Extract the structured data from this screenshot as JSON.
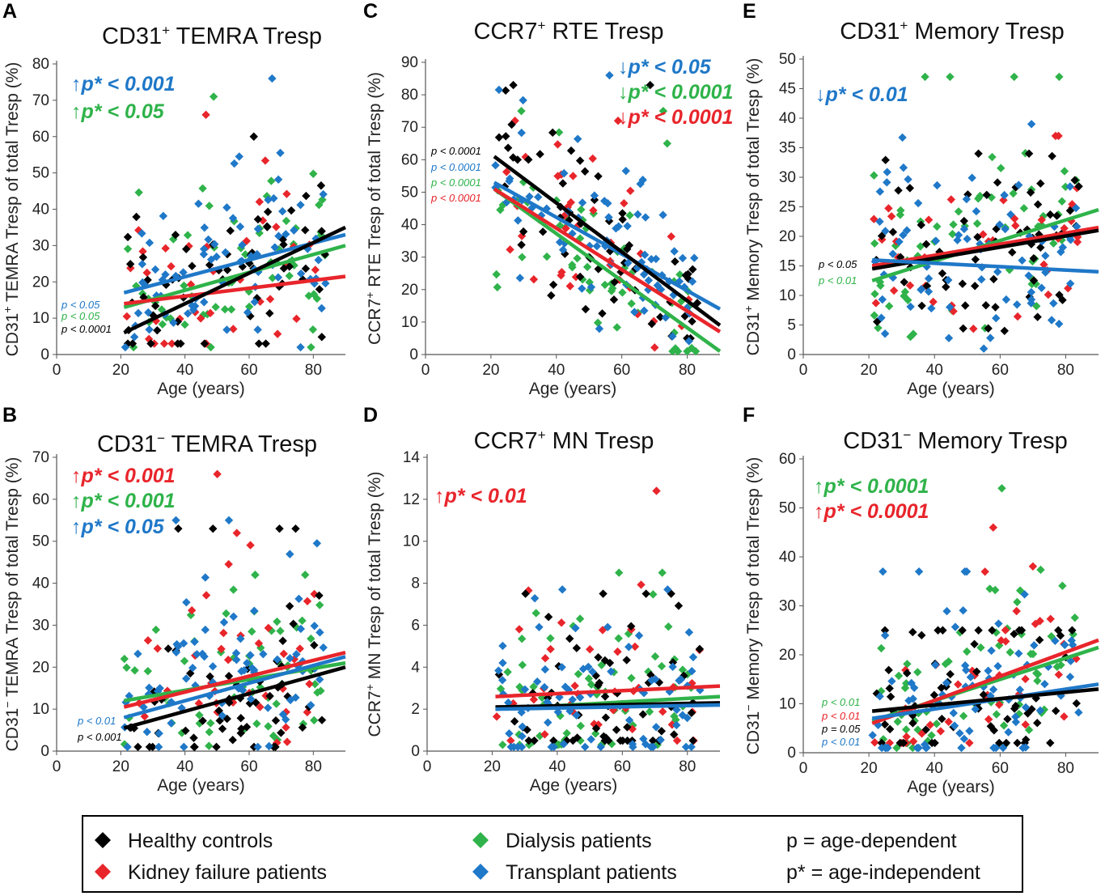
{
  "colors": {
    "healthy": "#000000",
    "kidney": "#e8252b",
    "dialysis": "#2fb34a",
    "transplant": "#1f78c8"
  },
  "legend": {
    "healthy": "Healthy controls",
    "kidney": "Kidney failure patients",
    "dialysis": "Dialysis patients",
    "transplant": "Transplant patients",
    "p_def": "p = age-dependent",
    "pstar_def": "p* = age-independent"
  },
  "chart_data": [
    {
      "id": "A",
      "type": "scatter",
      "letter": "A",
      "title_main": "CD31",
      "title_sup": "+",
      "title_rest": " TEMRA Tresp",
      "ylabel_main": "CD31",
      "ylabel_sup": "+",
      "ylabel_rest": " TEMRA Tresp of total Tresp (%)",
      "xlabel": "Age (years)",
      "xlim": [
        0,
        90
      ],
      "ylim": [
        0,
        80
      ],
      "xticks": [
        0,
        20,
        40,
        60,
        80
      ],
      "yticks": [
        0,
        10,
        20,
        30,
        40,
        50,
        60,
        70,
        80
      ],
      "series_ranges": {
        "healthy": [
          3,
          60
        ],
        "kidney": [
          3,
          66
        ],
        "dialysis": [
          2,
          71
        ],
        "transplant": [
          2,
          76
        ]
      },
      "trendlines": [
        {
          "group": "dialysis",
          "x0": 21,
          "y0": 13,
          "x1": 90,
          "y1": 30
        },
        {
          "group": "kidney",
          "x0": 21,
          "y0": 14,
          "x1": 90,
          "y1": 21.5
        },
        {
          "group": "transplant",
          "x0": 21,
          "y0": 17,
          "x1": 90,
          "y1": 33
        },
        {
          "group": "healthy",
          "x0": 21,
          "y0": 6,
          "x1": 90,
          "y1": 35
        }
      ],
      "pstar": [
        {
          "arrow": "↑",
          "text": "p* < 0.001",
          "group": "transplant"
        },
        {
          "arrow": "↑",
          "text": "p* < 0.05",
          "group": "dialysis"
        }
      ],
      "psmall": [
        {
          "text": "p < 0.05",
          "group": "transplant"
        },
        {
          "text": "p < 0.05",
          "group": "dialysis"
        },
        {
          "text": "p < 0.0001",
          "group": "healthy"
        }
      ]
    },
    {
      "id": "C",
      "type": "scatter",
      "letter": "C",
      "title_main": "CCR7",
      "title_sup": "+",
      "title_rest": " RTE Tresp",
      "ylabel_main": "CCR7",
      "ylabel_sup": "+",
      "ylabel_rest": " RTE Tresp of total Tresp (%)",
      "xlabel": "Age (years)",
      "xlim": [
        0,
        90
      ],
      "ylim": [
        0,
        90
      ],
      "xticks": [
        0,
        20,
        40,
        60,
        80
      ],
      "yticks": [
        0,
        10,
        20,
        30,
        40,
        50,
        60,
        70,
        80,
        90
      ],
      "series_ranges": {
        "healthy": [
          5,
          83
        ],
        "kidney": [
          1,
          72
        ],
        "dialysis": [
          1,
          75
        ],
        "transplant": [
          2,
          86
        ]
      },
      "trendlines": [
        {
          "group": "dialysis",
          "x0": 21,
          "y0": 51,
          "x1": 90,
          "y1": 1
        },
        {
          "group": "kidney",
          "x0": 21,
          "y0": 51,
          "x1": 90,
          "y1": 7
        },
        {
          "group": "transplant",
          "x0": 21,
          "y0": 53,
          "x1": 90,
          "y1": 14
        },
        {
          "group": "healthy",
          "x0": 21,
          "y0": 61,
          "x1": 90,
          "y1": 9
        }
      ],
      "pstar": [
        {
          "arrow": "↓",
          "text": "p* < 0.05",
          "group": "transplant"
        },
        {
          "arrow": "↓",
          "text": "p* < 0.0001",
          "group": "dialysis"
        },
        {
          "arrow": "↓",
          "text": "p* < 0.0001",
          "group": "kidney"
        }
      ],
      "psmall": [
        {
          "text": "p < 0.0001",
          "group": "healthy"
        },
        {
          "text": "p < 0.0001",
          "group": "transplant"
        },
        {
          "text": "p < 0.0001",
          "group": "dialysis"
        },
        {
          "text": "p < 0.0001",
          "group": "kidney"
        }
      ]
    },
    {
      "id": "E",
      "type": "scatter",
      "letter": "E",
      "title_main": "CD31",
      "title_sup": "+",
      "title_rest": " Memory Tresp",
      "ylabel_main": "CD31",
      "ylabel_sup": "+",
      "ylabel_rest": " Memory Tresp of total Tresp (%)",
      "xlabel": "Age (years)",
      "xlim": [
        0,
        90
      ],
      "ylim": [
        0,
        50
      ],
      "xticks": [
        0,
        20,
        40,
        60,
        80
      ],
      "yticks": [
        0,
        5,
        10,
        15,
        20,
        25,
        30,
        35,
        40,
        45,
        50
      ],
      "series_ranges": {
        "healthy": [
          4,
          34
        ],
        "kidney": [
          4,
          37
        ],
        "dialysis": [
          3,
          47
        ],
        "transplant": [
          1,
          39
        ]
      },
      "trendlines": [
        {
          "group": "dialysis",
          "x0": 21,
          "y0": 12.5,
          "x1": 90,
          "y1": 24.5
        },
        {
          "group": "kidney",
          "x0": 21,
          "y0": 15,
          "x1": 90,
          "y1": 21.5
        },
        {
          "group": "healthy",
          "x0": 21,
          "y0": 14.5,
          "x1": 90,
          "y1": 21
        },
        {
          "group": "transplant",
          "x0": 21,
          "y0": 16,
          "x1": 90,
          "y1": 14
        }
      ],
      "pstar": [
        {
          "arrow": "↓",
          "text": "p* < 0.01",
          "group": "transplant"
        }
      ],
      "psmall": [
        {
          "text": "p < 0.05",
          "group": "healthy"
        },
        {
          "text": "p < 0.01",
          "group": "dialysis"
        }
      ]
    },
    {
      "id": "B",
      "type": "scatter",
      "letter": "B",
      "title_main": "CD31",
      "title_sup": "−",
      "title_rest": " TEMRA Tresp",
      "ylabel_main": "CD31",
      "ylabel_sup": "−",
      "ylabel_rest": " TEMRA Tresp of total Tresp (%)",
      "xlabel": "Age (years)",
      "xlim": [
        0,
        90
      ],
      "ylim": [
        0,
        70
      ],
      "xticks": [
        0,
        20,
        40,
        60,
        80
      ],
      "yticks": [
        0,
        10,
        20,
        30,
        40,
        50,
        60,
        70
      ],
      "series_ranges": {
        "healthy": [
          1,
          53
        ],
        "kidney": [
          2,
          66
        ],
        "dialysis": [
          1,
          42
        ],
        "transplant": [
          1,
          55
        ]
      },
      "trendlines": [
        {
          "group": "dialysis",
          "x0": 21,
          "y0": 12,
          "x1": 90,
          "y1": 21
        },
        {
          "group": "kidney",
          "x0": 21,
          "y0": 10.5,
          "x1": 90,
          "y1": 23.5
        },
        {
          "group": "transplant",
          "x0": 21,
          "y0": 8,
          "x1": 90,
          "y1": 22.5
        },
        {
          "group": "healthy",
          "x0": 21,
          "y0": 5.5,
          "x1": 90,
          "y1": 20
        }
      ],
      "pstar": [
        {
          "arrow": "↑",
          "text": "p* < 0.001",
          "group": "kidney"
        },
        {
          "arrow": "↑",
          "text": "p* < 0.001",
          "group": "dialysis"
        },
        {
          "arrow": "↑",
          "text": "p* < 0.05",
          "group": "transplant"
        }
      ],
      "psmall": [
        {
          "text": "p < 0.01",
          "group": "transplant"
        },
        {
          "text": "p < 0.001",
          "group": "healthy"
        }
      ]
    },
    {
      "id": "D",
      "type": "scatter",
      "letter": "D",
      "title_main": "CCR7",
      "title_sup": "+",
      "title_rest": " MN Tresp",
      "ylabel_main": "CCR7",
      "ylabel_sup": "+",
      "ylabel_rest": " MN Tresp of total Tresp (%)",
      "xlabel": "Age (years)",
      "xlim": [
        0,
        90
      ],
      "ylim": [
        0,
        14
      ],
      "xticks": [
        0,
        20,
        40,
        60,
        80
      ],
      "yticks": [
        0,
        2,
        4,
        6,
        8,
        10,
        12,
        14
      ],
      "series_ranges": {
        "healthy": [
          0.5,
          7.5
        ],
        "kidney": [
          0.5,
          12.4
        ],
        "dialysis": [
          0.3,
          8.5
        ],
        "transplant": [
          0.2,
          7.7
        ]
      },
      "trendlines": [
        {
          "group": "dialysis",
          "x0": 21,
          "y0": 2.0,
          "x1": 90,
          "y1": 2.6
        },
        {
          "group": "kidney",
          "x0": 21,
          "y0": 2.6,
          "x1": 90,
          "y1": 3.1
        },
        {
          "group": "healthy",
          "x0": 21,
          "y0": 2.1,
          "x1": 90,
          "y1": 2.3
        },
        {
          "group": "transplant",
          "x0": 21,
          "y0": 2.0,
          "x1": 90,
          "y1": 2.2
        }
      ],
      "pstar": [
        {
          "arrow": "↑",
          "text": "p* < 0.01",
          "group": "kidney"
        }
      ],
      "psmall": []
    },
    {
      "id": "F",
      "type": "scatter",
      "letter": "F",
      "title_main": "CD31",
      "title_sup": "−",
      "title_rest": " Memory Tresp",
      "ylabel_main": "CD31",
      "ylabel_sup": "−",
      "ylabel_rest": " Memory Tresp of total Tresp (%)",
      "xlabel": "Age (years)",
      "xlim": [
        0,
        90
      ],
      "ylim": [
        0,
        60
      ],
      "xticks": [
        0,
        20,
        40,
        60,
        80
      ],
      "yticks": [
        0,
        10,
        20,
        30,
        40,
        50,
        60
      ],
      "series_ranges": {
        "healthy": [
          2,
          25
        ],
        "kidney": [
          2,
          46
        ],
        "dialysis": [
          1,
          54
        ],
        "transplant": [
          1,
          37
        ]
      },
      "trendlines": [
        {
          "group": "dialysis",
          "x0": 21,
          "y0": 6.5,
          "x1": 90,
          "y1": 21.5
        },
        {
          "group": "kidney",
          "x0": 21,
          "y0": 6,
          "x1": 90,
          "y1": 23
        },
        {
          "group": "transplant",
          "x0": 21,
          "y0": 7,
          "x1": 90,
          "y1": 14
        },
        {
          "group": "healthy",
          "x0": 21,
          "y0": 8.5,
          "x1": 90,
          "y1": 13
        }
      ],
      "pstar": [
        {
          "arrow": "↑",
          "text": "p* < 0.0001",
          "group": "dialysis"
        },
        {
          "arrow": "↑",
          "text": "p* < 0.0001",
          "group": "kidney"
        }
      ],
      "psmall": [
        {
          "text": "p < 0.01",
          "group": "dialysis"
        },
        {
          "text": "p < 0.01",
          "group": "kidney"
        },
        {
          "text": "p = 0.05",
          "group": "healthy"
        },
        {
          "text": "p < 0.01",
          "group": "transplant"
        }
      ]
    }
  ]
}
